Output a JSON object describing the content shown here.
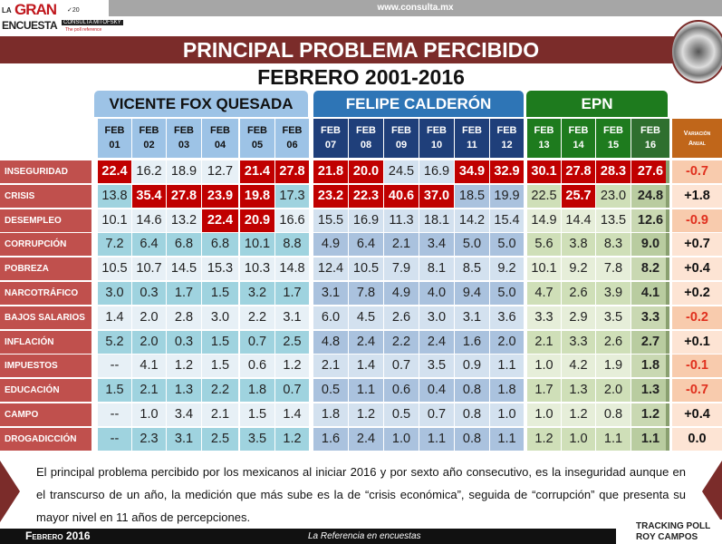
{
  "header": {
    "url": "www.consulta.mx",
    "logo_text": "LA GRAN ENCUESTA CONSULTA MITOFSKY 20 The poll reference",
    "title": "PRINCIPAL PROBLEMA PERCIBIDO",
    "subtitle": "FEBRERO 2001-2016"
  },
  "footer": {
    "date": "Febrero 2016",
    "tagline": "La Referencia en encuestas",
    "brand": "TRACKING POLL ROY CAMPOS"
  },
  "paragraph": "El principal problema percibido por los mexicanos al iniciar 2016 y por sexto año consecutivo, es la inseguridad aunque en el transcurso de un año, la medición que más sube es la de “crisis económica”, seguida de “corrupción” que presenta su mayor nivel en 11 años de percepciones.",
  "colors": {
    "maroon": "#7b2c2a",
    "label_red": "#c0504d",
    "highlight_red": "#c00000",
    "fox_light": "#9dc3e6",
    "calderon": "#1f3f7a",
    "epn": "#1e7b1e",
    "variation": "#c0661a"
  },
  "chart_data": {
    "type": "table",
    "title": "PRINCIPAL PROBLEMA PERCIBIDO",
    "subtitle": "FEBRERO 2001-2016",
    "groups": [
      {
        "name": "VICENTE FOX QUESADA",
        "span": 6
      },
      {
        "name": "FELIPE CALDERÓN",
        "span": 6
      },
      {
        "name": "EPN",
        "span": 4
      }
    ],
    "columns": [
      [
        "FEB",
        "01"
      ],
      [
        "FEB",
        "02"
      ],
      [
        "FEB",
        "03"
      ],
      [
        "FEB",
        "04"
      ],
      [
        "FEB",
        "05"
      ],
      [
        "FEB",
        "06"
      ],
      [
        "FEB",
        "07"
      ],
      [
        "FEB",
        "08"
      ],
      [
        "FEB",
        "09"
      ],
      [
        "FEB",
        "10"
      ],
      [
        "FEB",
        "11"
      ],
      [
        "FEB",
        "12"
      ],
      [
        "FEB",
        "13"
      ],
      [
        "FEB",
        "14"
      ],
      [
        "FEB",
        "15"
      ],
      [
        "FEB",
        "16"
      ]
    ],
    "variation_header": [
      "Variación",
      "Anual"
    ],
    "rows": [
      {
        "label": "INSEGURIDAD",
        "values": [
          "22.4",
          "16.2",
          "18.9",
          "12.7",
          "21.4",
          "27.8",
          "21.8",
          "20.0",
          "24.5",
          "16.9",
          "34.9",
          "32.9",
          "30.1",
          "27.8",
          "28.3",
          "27.6"
        ],
        "highlight": [
          0,
          4,
          5,
          6,
          7,
          10,
          11,
          12,
          13,
          14,
          15
        ],
        "variation": "-0.7"
      },
      {
        "label": "CRISIS",
        "values": [
          "13.8",
          "35.4",
          "27.8",
          "23.9",
          "19.8",
          "17.3",
          "23.2",
          "22.3",
          "40.6",
          "37.0",
          "18.5",
          "19.9",
          "22.5",
          "25.7",
          "23.0",
          "24.8"
        ],
        "highlight": [
          1,
          2,
          3,
          4,
          6,
          7,
          8,
          9,
          13
        ],
        "variation": "+1.8"
      },
      {
        "label": "DESEMPLEO",
        "values": [
          "10.1",
          "14.6",
          "13.2",
          "22.4",
          "20.9",
          "16.6",
          "15.5",
          "16.9",
          "11.3",
          "18.1",
          "14.2",
          "15.4",
          "14.9",
          "14.4",
          "13.5",
          "12.6"
        ],
        "highlight": [
          3,
          4
        ],
        "variation": "-0.9"
      },
      {
        "label": "CORRUPCIÓN",
        "values": [
          "7.2",
          "6.4",
          "6.8",
          "6.8",
          "10.1",
          "8.8",
          "4.9",
          "6.4",
          "2.1",
          "3.4",
          "5.0",
          "5.0",
          "5.6",
          "3.8",
          "8.3",
          "9.0"
        ],
        "highlight": [],
        "variation": "+0.7"
      },
      {
        "label": "POBREZA",
        "values": [
          "10.5",
          "10.7",
          "14.5",
          "15.3",
          "10.3",
          "14.8",
          "12.4",
          "10.5",
          "7.9",
          "8.1",
          "8.5",
          "9.2",
          "10.1",
          "9.2",
          "7.8",
          "8.2"
        ],
        "highlight": [],
        "variation": "+0.4"
      },
      {
        "label": "NARCOTRÁFICO",
        "values": [
          "3.0",
          "0.3",
          "1.7",
          "1.5",
          "3.2",
          "1.7",
          "3.1",
          "7.8",
          "4.9",
          "4.0",
          "9.4",
          "5.0",
          "4.7",
          "2.6",
          "3.9",
          "4.1"
        ],
        "highlight": [],
        "variation": "+0.2"
      },
      {
        "label": "BAJOS SALARIOS",
        "values": [
          "1.4",
          "2.0",
          "2.8",
          "3.0",
          "2.2",
          "3.1",
          "6.0",
          "4.5",
          "2.6",
          "3.0",
          "3.1",
          "3.6",
          "3.3",
          "2.9",
          "3.5",
          "3.3"
        ],
        "highlight": [],
        "variation": "-0.2"
      },
      {
        "label": "INFLACIÓN",
        "values": [
          "5.2",
          "2.0",
          "0.3",
          "1.5",
          "0.7",
          "2.5",
          "4.8",
          "2.4",
          "2.2",
          "2.4",
          "1.6",
          "2.0",
          "2.1",
          "3.3",
          "2.6",
          "2.7"
        ],
        "highlight": [],
        "variation": "+0.1"
      },
      {
        "label": "IMPUESTOS",
        "values": [
          "--",
          "4.1",
          "1.2",
          "1.5",
          "0.6",
          "1.2",
          "2.1",
          "1.4",
          "0.7",
          "3.5",
          "0.9",
          "1.1",
          "1.0",
          "4.2",
          "1.9",
          "1.8"
        ],
        "highlight": [],
        "variation": "-0.1"
      },
      {
        "label": "EDUCACIÓN",
        "values": [
          "1.5",
          "2.1",
          "1.3",
          "2.2",
          "1.8",
          "0.7",
          "0.5",
          "1.1",
          "0.6",
          "0.4",
          "0.8",
          "1.8",
          "1.7",
          "1.3",
          "2.0",
          "1.3"
        ],
        "highlight": [],
        "variation": "-0.7"
      },
      {
        "label": "CAMPO",
        "values": [
          "--",
          "1.0",
          "3.4",
          "2.1",
          "1.5",
          "1.4",
          "1.8",
          "1.2",
          "0.5",
          "0.7",
          "0.8",
          "1.0",
          "1.0",
          "1.2",
          "0.8",
          "1.2"
        ],
        "highlight": [],
        "variation": "+0.4"
      },
      {
        "label": "DROGADICCIÓN",
        "values": [
          "--",
          "2.3",
          "3.1",
          "2.5",
          "3.5",
          "1.2",
          "1.6",
          "2.4",
          "1.0",
          "1.1",
          "0.8",
          "1.1",
          "1.2",
          "1.0",
          "1.1",
          "1.1"
        ],
        "highlight": [],
        "variation": "0.0"
      }
    ]
  }
}
